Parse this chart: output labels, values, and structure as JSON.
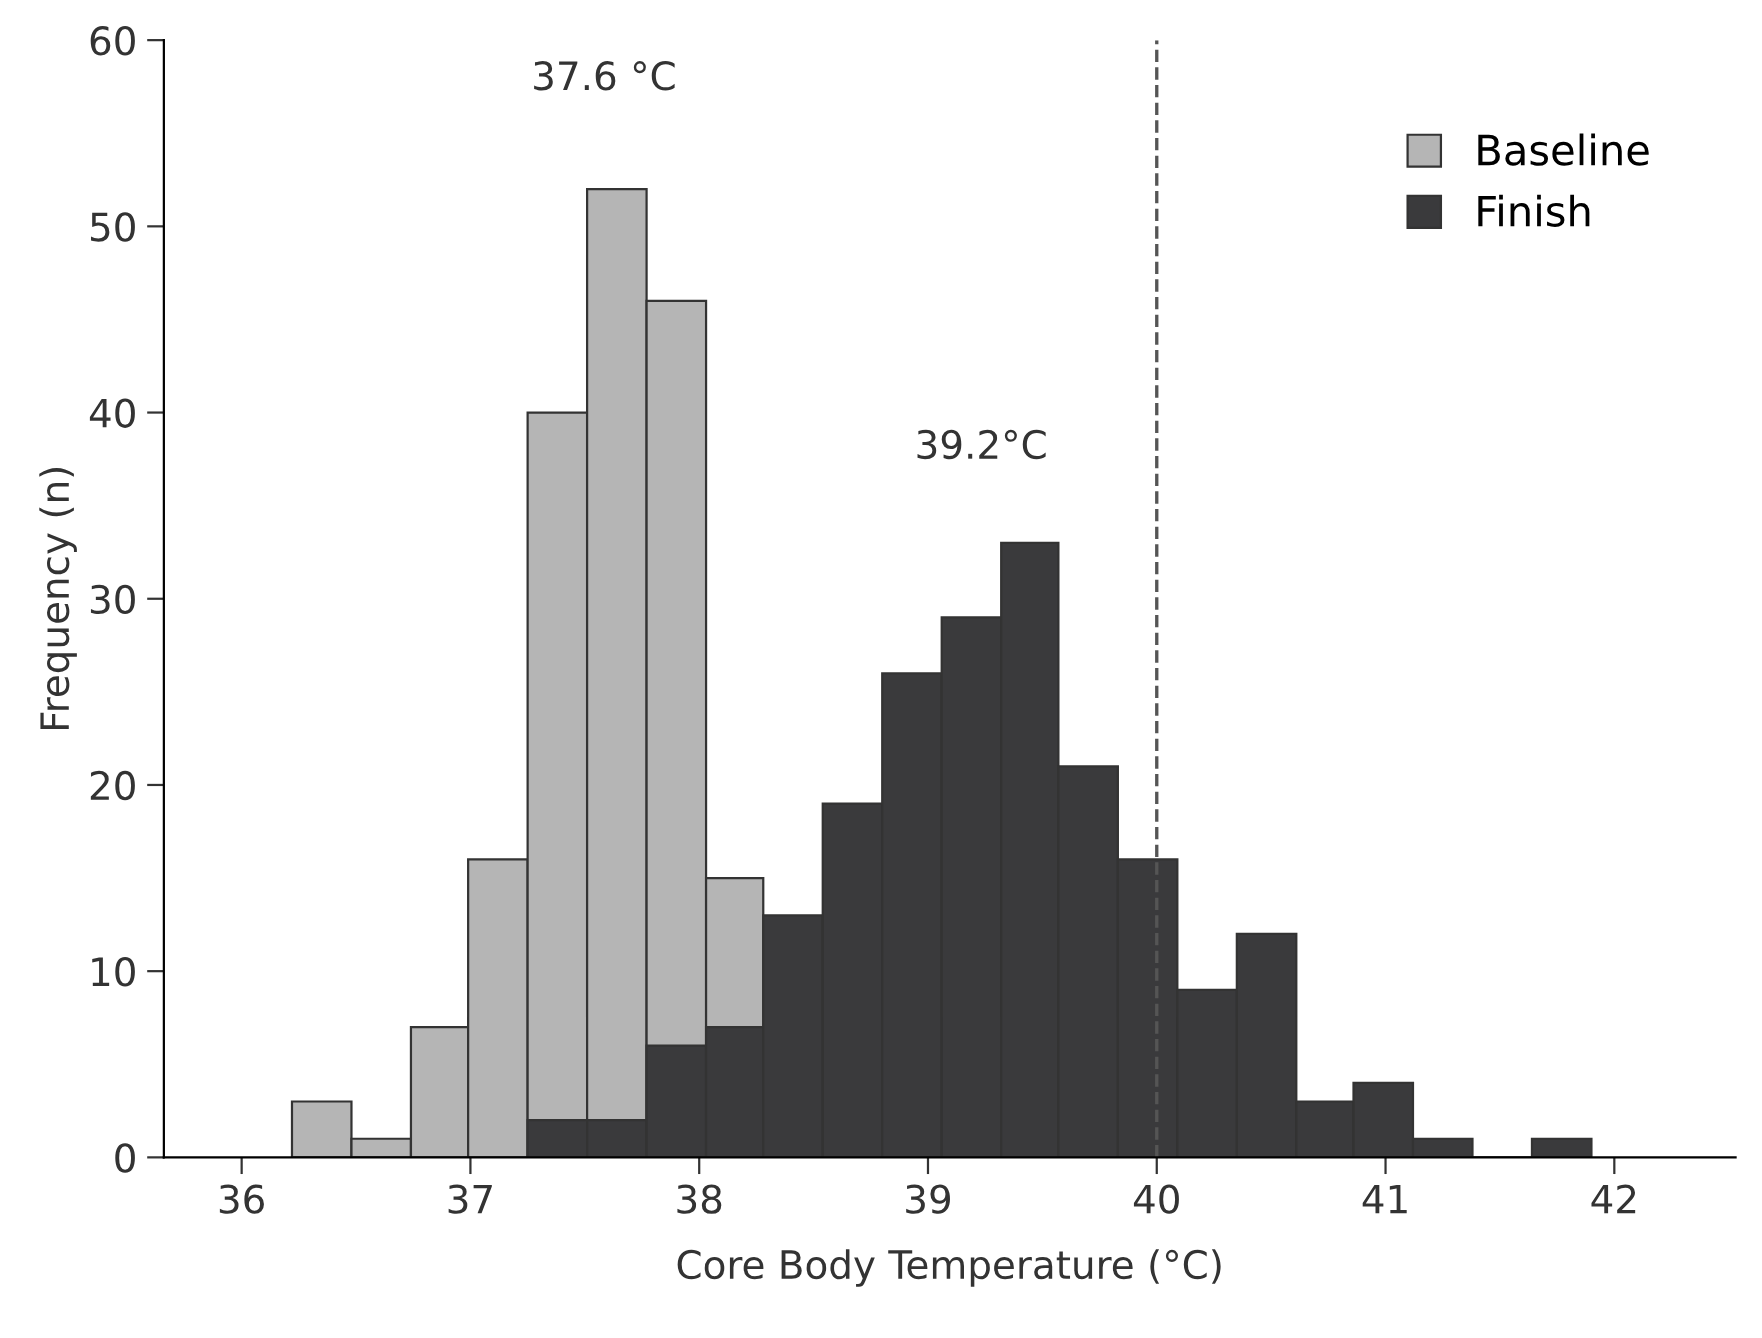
{
  "chart_data": {
    "type": "histogram",
    "xlabel": "Core Body Temperature (°C)",
    "ylabel": "Frequency (n)",
    "bins": [
      36.22,
      36.48,
      36.74,
      36.99,
      37.25,
      37.51,
      37.77,
      38.03,
      38.28,
      38.54,
      38.8,
      39.06,
      39.32,
      39.57,
      39.83,
      40.09,
      40.35,
      40.61,
      40.86,
      41.12,
      41.38,
      41.64,
      41.9
    ],
    "series": [
      {
        "name": "Baseline",
        "color": "#b5b5b5",
        "values": [
          3,
          1,
          7,
          16,
          40,
          52,
          46,
          15,
          null,
          null,
          null,
          null,
          null,
          null,
          null,
          null,
          null,
          null,
          null,
          null,
          null,
          null
        ]
      },
      {
        "name": "Finish",
        "color": "#3a3a3c",
        "values": [
          null,
          null,
          null,
          null,
          2,
          2,
          6,
          7,
          13,
          19,
          26,
          29,
          33,
          21,
          16,
          9,
          12,
          3,
          4,
          1,
          0,
          1
        ]
      }
    ],
    "xlim": [
      35.66,
      42.53
    ],
    "ylim": [
      0,
      60
    ],
    "xticks": [
      36,
      37,
      38,
      39,
      40,
      41,
      42
    ],
    "yticks": [
      0,
      10,
      20,
      30,
      40,
      50,
      60
    ],
    "ref_lines": [
      {
        "axis": "x",
        "value": 40,
        "color": "#555555",
        "line_style": "dashed"
      }
    ],
    "annotations": [
      "37.6 °C",
      "39.2°C"
    ],
    "grid": false,
    "legend": "top right"
  }
}
